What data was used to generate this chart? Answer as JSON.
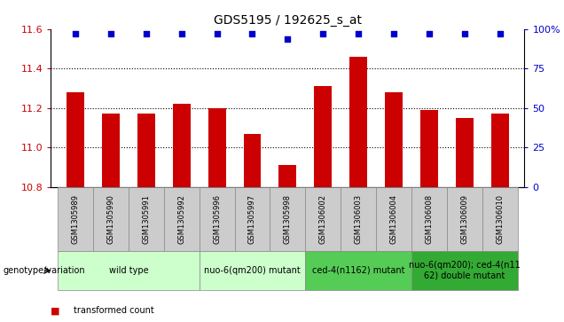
{
  "title": "GDS5195 / 192625_s_at",
  "samples": [
    "GSM1305989",
    "GSM1305990",
    "GSM1305991",
    "GSM1305992",
    "GSM1305996",
    "GSM1305997",
    "GSM1305998",
    "GSM1306002",
    "GSM1306003",
    "GSM1306004",
    "GSM1306008",
    "GSM1306009",
    "GSM1306010"
  ],
  "bar_values": [
    11.28,
    11.17,
    11.17,
    11.22,
    11.2,
    11.07,
    10.91,
    11.31,
    11.46,
    11.28,
    11.19,
    11.15,
    11.17
  ],
  "percentile_values": [
    100,
    100,
    100,
    100,
    100,
    100,
    95,
    100,
    100,
    100,
    100,
    100,
    100
  ],
  "ylim": [
    10.8,
    11.6
  ],
  "yticks_left": [
    10.8,
    11.0,
    11.2,
    11.4,
    11.6
  ],
  "right_yticks_pct": [
    0,
    25,
    50,
    75,
    100
  ],
  "bar_color": "#cc0000",
  "percentile_color": "#0000cc",
  "bar_bottom": 10.8,
  "group_spans": [
    {
      "label": "wild type",
      "start": 0,
      "end": 4,
      "color": "#ccffcc"
    },
    {
      "label": "nuo-6(qm200) mutant",
      "start": 4,
      "end": 7,
      "color": "#ccffcc"
    },
    {
      "label": "ced-4(n1162) mutant",
      "start": 7,
      "end": 10,
      "color": "#55cc55"
    },
    {
      "label": "nuo-6(qm200); ced-4(n11\n62) double mutant",
      "start": 10,
      "end": 13,
      "color": "#33aa33"
    }
  ],
  "sample_box_color": "#cccccc",
  "genotype_label": "genotype/variation",
  "left_tick_color": "#cc0000",
  "right_tick_color": "#0000cc",
  "title_fontsize": 10,
  "tick_fontsize": 8,
  "sample_fontsize": 6,
  "group_fontsize": 7
}
